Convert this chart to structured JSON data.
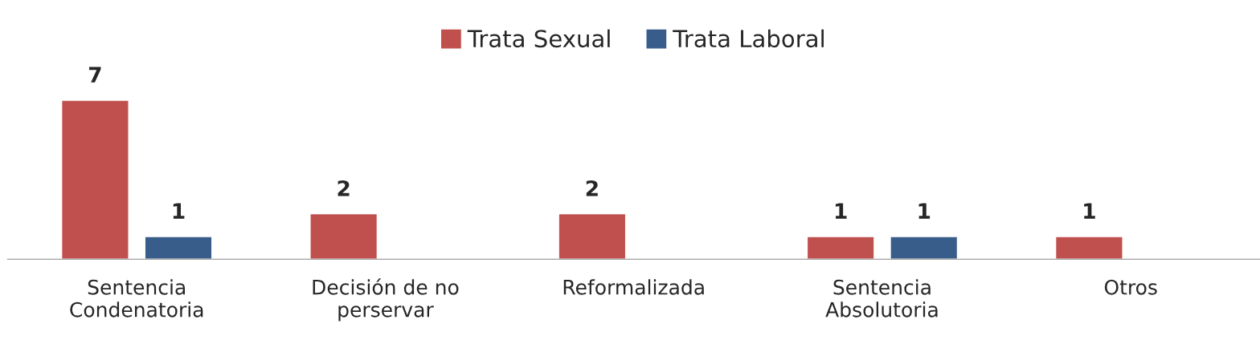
{
  "chart_data": {
    "type": "bar",
    "categories": [
      "Sentencia\nCondenatoria",
      "Decisión de no\nperservar",
      "Reformalizada",
      "Sentencia\nAbsolutoria",
      "Otros"
    ],
    "series": [
      {
        "name": "Trata Sexual",
        "color": "#c0504d",
        "values": [
          7,
          2,
          2,
          1,
          1
        ]
      },
      {
        "name": "Trata Laboral",
        "color": "#385d8a",
        "values": [
          1,
          null,
          null,
          1,
          null
        ]
      }
    ],
    "data_labels": true,
    "legend": "top",
    "grid": false
  }
}
